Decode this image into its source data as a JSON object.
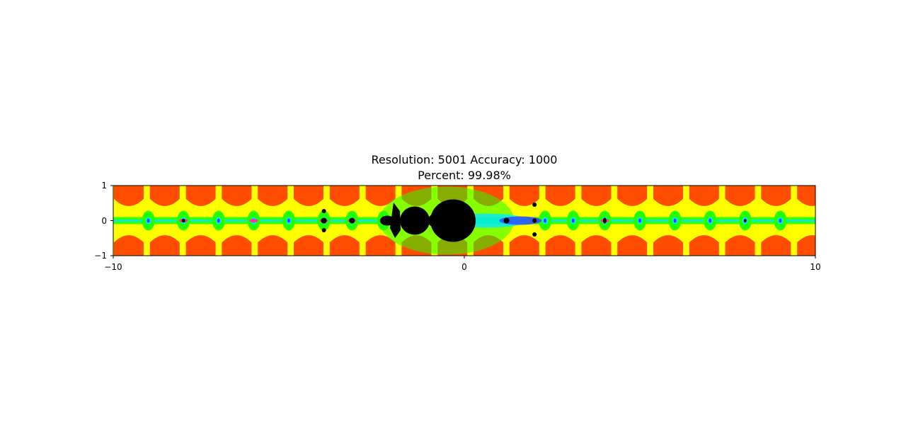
{
  "chart_data": {
    "type": "heatmap",
    "title_line1": "Resolution: 5001 Accuracy: 1000",
    "title_line2": "Percent: 99.98%",
    "xlabel": "",
    "ylabel": "",
    "xlim": [
      -10,
      10
    ],
    "ylim": [
      -1,
      1
    ],
    "xticks": [
      "−10",
      "0",
      "10"
    ],
    "yticks": [
      "1",
      "0",
      "−1"
    ],
    "colors": {
      "background_far": "#ff4d00",
      "band": "#ffff00",
      "near_axis": "#22ff00",
      "edge": "#00eaff",
      "deep": "#3344ff",
      "pink": "#ff3399",
      "interior": "#000000"
    },
    "grid": false
  }
}
